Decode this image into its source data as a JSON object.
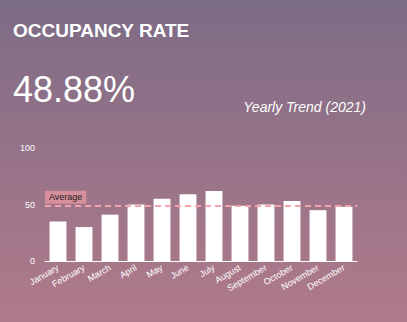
{
  "chart_data": {
    "type": "bar",
    "title": "OCCUPANCY RATE",
    "headline": "48.88%",
    "subtitle": "Yearly Trend (2021)",
    "categories": [
      "January",
      "February",
      "March",
      "April",
      "May",
      "June",
      "July",
      "August",
      "September",
      "October",
      "November",
      "December"
    ],
    "values": [
      35,
      30,
      41,
      50,
      55,
      59,
      62,
      49,
      50,
      53,
      45,
      48
    ],
    "color": "#ffffff",
    "reference_line": {
      "value": 48.88,
      "label": "Average"
    },
    "ylim": [
      0,
      100
    ],
    "yticks": [
      0,
      50,
      100
    ],
    "grid": false
  }
}
